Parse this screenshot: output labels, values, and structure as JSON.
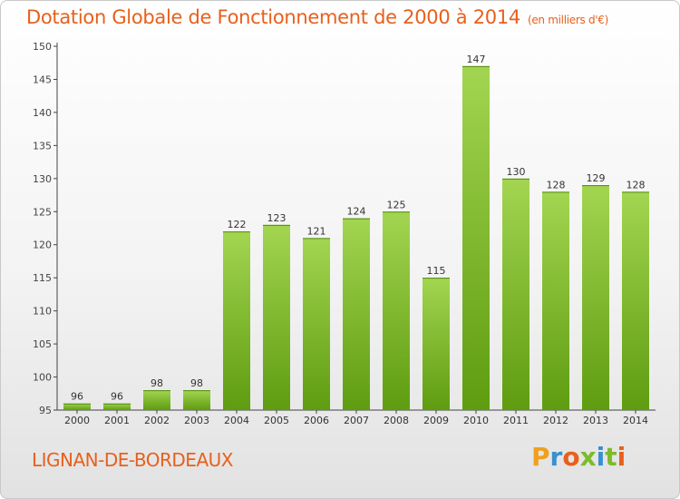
{
  "header": {
    "title": "Dotation Globale de Fonctionnement de 2000 à 2014",
    "subtitle": "(en milliers d'€)"
  },
  "footer": {
    "commune": "LIGNAN-DE-BORDEAUX",
    "logo_text": "Proxiti"
  },
  "colors": {
    "accent": "#e8601c",
    "bar_light": "#9fd24a",
    "bar_dark": "#5f9e12"
  },
  "chart_data": {
    "type": "bar",
    "title": "Dotation Globale de Fonctionnement de 2000 à 2014",
    "subtitle": "(en milliers d'€)",
    "xlabel": "",
    "ylabel": "",
    "categories": [
      "2000",
      "2001",
      "2002",
      "2003",
      "2004",
      "2005",
      "2006",
      "2007",
      "2008",
      "2009",
      "2010",
      "2011",
      "2012",
      "2013",
      "2014"
    ],
    "values": [
      96,
      96,
      98,
      98,
      122,
      123,
      121,
      124,
      125,
      115,
      147,
      130,
      128,
      129,
      128
    ],
    "ylim": [
      95,
      150
    ],
    "yticks": [
      95,
      100,
      105,
      110,
      115,
      120,
      125,
      130,
      135,
      140,
      145,
      150
    ],
    "grid": false,
    "legend": "none",
    "data_labels": true
  }
}
